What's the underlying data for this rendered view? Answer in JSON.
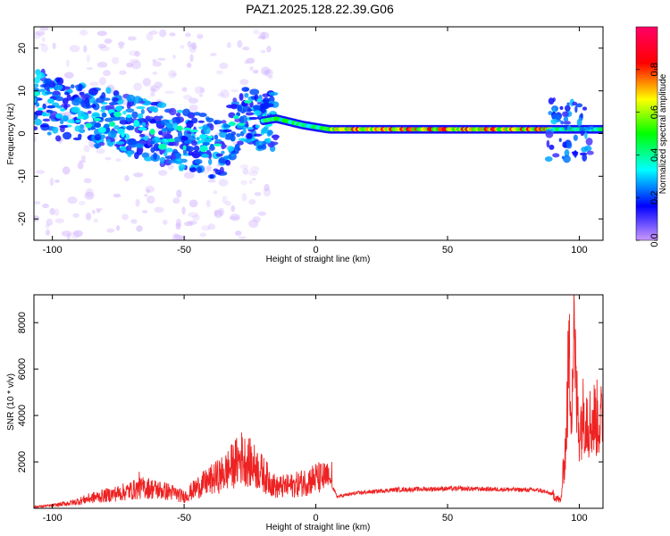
{
  "title": "PAZ1.2025.128.22.39.G06",
  "chart_data": [
    {
      "type": "heatmap",
      "xlabel": "Height of straight line (km)",
      "ylabel": "Frequency (Hz)",
      "xlim": [
        -107,
        109
      ],
      "ylim": [
        -25,
        25
      ],
      "xticks": [
        -100,
        -50,
        0,
        50,
        100
      ],
      "yticks": [
        -20,
        -10,
        0,
        10,
        20
      ],
      "colorbar": {
        "label": "Normalized spectral amplitude",
        "range": [
          0,
          1
        ],
        "ticks": [
          0.0,
          0.2,
          0.4,
          0.6,
          0.8
        ],
        "colors": [
          "#cc99ff",
          "#0000ff",
          "#00ffff",
          "#00ff00",
          "#ffff00",
          "#ff0000",
          "#ff0066"
        ]
      },
      "ridge": [
        {
          "x": -105,
          "f": 8
        },
        {
          "x": -95,
          "f": 5
        },
        {
          "x": -85,
          "f": 4
        },
        {
          "x": -75,
          "f": 3
        },
        {
          "x": -65,
          "f": 1
        },
        {
          "x": -55,
          "f": -1
        },
        {
          "x": -45,
          "f": -2
        },
        {
          "x": -35,
          "f": -4
        },
        {
          "x": -28,
          "f": 5
        },
        {
          "x": -20,
          "f": 3
        },
        {
          "x": -15,
          "f": 3.5
        },
        {
          "x": -5,
          "f": 2
        },
        {
          "x": 5,
          "f": 1
        },
        {
          "x": 20,
          "f": 1
        },
        {
          "x": 40,
          "f": 1
        },
        {
          "x": 60,
          "f": 1
        },
        {
          "x": 80,
          "f": 1
        },
        {
          "x": 95,
          "f": 1
        },
        {
          "x": 109,
          "f": 1
        }
      ]
    },
    {
      "type": "line",
      "xlabel": "Height of straight line (km)",
      "ylabel": "SNR (10 * v/v)",
      "xlim": [
        -107,
        109
      ],
      "ylim": [
        0,
        9200
      ],
      "xticks": [
        -100,
        -50,
        0,
        50,
        100
      ],
      "yticks": [
        2000,
        4000,
        6000,
        8000
      ],
      "series": [
        {
          "color": "#ee2222",
          "envelope": [
            {
              "x": -107,
              "y": 60
            },
            {
              "x": -100,
              "y": 120
            },
            {
              "x": -92,
              "y": 250
            },
            {
              "x": -85,
              "y": 450
            },
            {
              "x": -75,
              "y": 650
            },
            {
              "x": -65,
              "y": 900
            },
            {
              "x": -55,
              "y": 700
            },
            {
              "x": -50,
              "y": 500
            },
            {
              "x": -45,
              "y": 900
            },
            {
              "x": -35,
              "y": 1500
            },
            {
              "x": -28,
              "y": 2200
            },
            {
              "x": -22,
              "y": 1700
            },
            {
              "x": -15,
              "y": 900
            },
            {
              "x": -8,
              "y": 1000
            },
            {
              "x": 0,
              "y": 1300
            },
            {
              "x": 5,
              "y": 1300
            },
            {
              "x": 8,
              "y": 500
            },
            {
              "x": 15,
              "y": 650
            },
            {
              "x": 30,
              "y": 800
            },
            {
              "x": 50,
              "y": 850
            },
            {
              "x": 70,
              "y": 820
            },
            {
              "x": 85,
              "y": 780
            },
            {
              "x": 90,
              "y": 600
            },
            {
              "x": 93,
              "y": 300
            },
            {
              "x": 95,
              "y": 3000
            },
            {
              "x": 96,
              "y": 6500
            },
            {
              "x": 97,
              "y": 5000
            },
            {
              "x": 98,
              "y": 7000
            },
            {
              "x": 99,
              "y": 4500
            },
            {
              "x": 100,
              "y": 3500
            },
            {
              "x": 102,
              "y": 4200
            },
            {
              "x": 104,
              "y": 3700
            },
            {
              "x": 106,
              "y": 3900
            },
            {
              "x": 109,
              "y": 3700
            }
          ],
          "peaks": [
            {
              "x": -67,
              "y": 1580
            },
            {
              "x": -27,
              "y": 3000
            },
            {
              "x": 6,
              "y": 2000
            },
            {
              "x": 96,
              "y": 8100
            },
            {
              "x": 98,
              "y": 9200
            },
            {
              "x": 103,
              "y": 4700
            }
          ]
        }
      ]
    }
  ]
}
